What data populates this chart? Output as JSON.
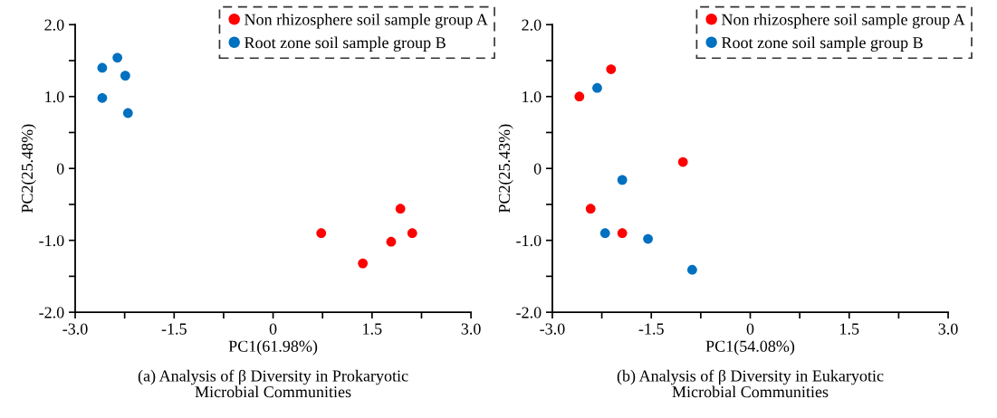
{
  "chart_data": [
    {
      "type": "scatter",
      "title": "(a) Analysis of β Diversity in Prokaryotic\nMicrobial Communities",
      "xlabel": "PC1(61.98%)",
      "ylabel": "PC2(25.48%)",
      "series": [
        {
          "name": "Non rhizosphere soil sample group A",
          "color": "#ff0000",
          "x": [
            0.73,
            1.36,
            1.79,
            1.93,
            2.11
          ],
          "values": [
            -0.9,
            -1.32,
            -1.02,
            -0.56,
            -0.9
          ]
        },
        {
          "name": "Root zone soil sample group B",
          "color": "#0070c0",
          "x": [
            -2.59,
            -2.36,
            -2.24,
            -2.59,
            -2.2
          ],
          "values": [
            1.4,
            1.54,
            1.29,
            0.98,
            0.77
          ]
        }
      ],
      "xlim": [
        -3.0,
        3.0
      ],
      "ylim": [
        -2.0,
        2.0
      ],
      "xticks": [
        {
          "value": -3.0,
          "label": "-3.0"
        },
        {
          "value": -2.25,
          "label": null
        },
        {
          "value": -1.5,
          "label": "-1.5"
        },
        {
          "value": -0.75,
          "label": null
        },
        0,
        {
          "value": 0.75,
          "label": null
        },
        {
          "value": 1.5,
          "label": "1.5"
        },
        {
          "value": 2.25,
          "label": null
        },
        {
          "value": 3.0,
          "label": "3.0"
        }
      ],
      "yticks": [
        {
          "value": -2.0,
          "label": "-2.0"
        },
        {
          "value": -1.5,
          "label": null
        },
        {
          "value": -1.0,
          "label": "-1.0"
        },
        {
          "value": -0.5,
          "label": null
        },
        0,
        {
          "value": 0.5,
          "label": null
        },
        {
          "value": 1.0,
          "label": "1.0"
        },
        {
          "value": 1.5,
          "label": null
        },
        {
          "value": 2.0,
          "label": "2.0"
        }
      ],
      "legend": "top right",
      "grid": false,
      "marker": "circle"
    },
    {
      "type": "scatter",
      "title": "(b) Analysis of β Diversity in Eukaryotic\nMicrobial Communities",
      "xlabel": "PC1(54.08%)",
      "ylabel": "PC2(25.43%)",
      "series": [
        {
          "name": "Non rhizosphere soil sample group A",
          "color": "#ff0000",
          "x": [
            -2.59,
            -2.11,
            -1.02,
            -2.42,
            -1.94
          ],
          "values": [
            1.0,
            1.38,
            0.09,
            -0.56,
            -0.9
          ]
        },
        {
          "name": "Root zone soil sample group B",
          "color": "#0070c0",
          "x": [
            -2.32,
            -1.94,
            -2.2,
            -1.55,
            -0.88
          ],
          "values": [
            1.12,
            -0.16,
            -0.9,
            -0.98,
            -1.41
          ]
        }
      ],
      "xlim": [
        -3.0,
        3.0
      ],
      "ylim": [
        -2.0,
        2.0
      ],
      "xticks": [
        {
          "value": -3.0,
          "label": "-3.0"
        },
        {
          "value": -2.25,
          "label": null
        },
        {
          "value": -1.5,
          "label": "-1.5"
        },
        {
          "value": -0.75,
          "label": null
        },
        0,
        {
          "value": 0.75,
          "label": null
        },
        {
          "value": 1.5,
          "label": "1.5"
        },
        {
          "value": 2.25,
          "label": null
        },
        {
          "value": 3.0,
          "label": "3.0"
        }
      ],
      "yticks": [
        {
          "value": -2.0,
          "label": "-2.0"
        },
        {
          "value": -1.5,
          "label": null
        },
        {
          "value": -1.0,
          "label": "-1.0"
        },
        {
          "value": -0.5,
          "label": null
        },
        0,
        {
          "value": 0.5,
          "label": null
        },
        {
          "value": 1.0,
          "label": "1.0"
        },
        {
          "value": 1.5,
          "label": null
        },
        {
          "value": 2.0,
          "label": "2.0"
        }
      ],
      "legend": "top right",
      "grid": false,
      "marker": "circle"
    }
  ]
}
